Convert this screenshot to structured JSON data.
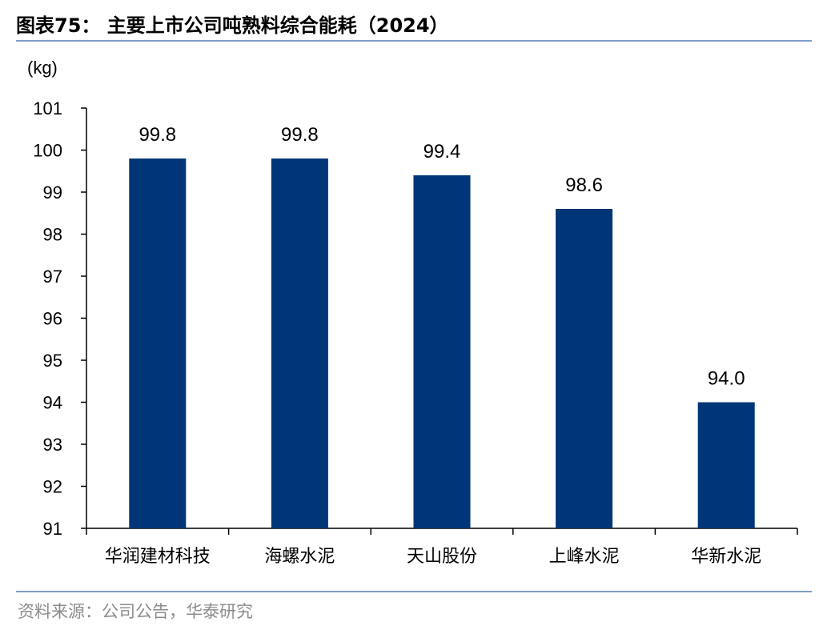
{
  "header": {
    "title": "图表75：  主要上市公司吨熟料综合能耗（2024）"
  },
  "footer": {
    "source": "资料来源：公司公告，华泰研究"
  },
  "colors": {
    "bar": "#003677",
    "rule": "#7f9cc8",
    "axis": "#000000"
  },
  "chart_data": {
    "type": "bar",
    "title": "",
    "xlabel": "",
    "ylabel": "(kg)",
    "categories": [
      "华润建材科技",
      "海螺水泥",
      "天山股份",
      "上峰水泥",
      "华新水泥"
    ],
    "values": [
      99.8,
      99.8,
      99.4,
      98.6,
      94.0
    ],
    "value_labels": [
      "99.8",
      "99.8",
      "99.4",
      "98.6",
      "94.0"
    ],
    "ylim": [
      91,
      101
    ],
    "yticks": [
      91,
      92,
      93,
      94,
      95,
      96,
      97,
      98,
      99,
      100,
      101
    ],
    "grid": false,
    "legend": "none"
  }
}
